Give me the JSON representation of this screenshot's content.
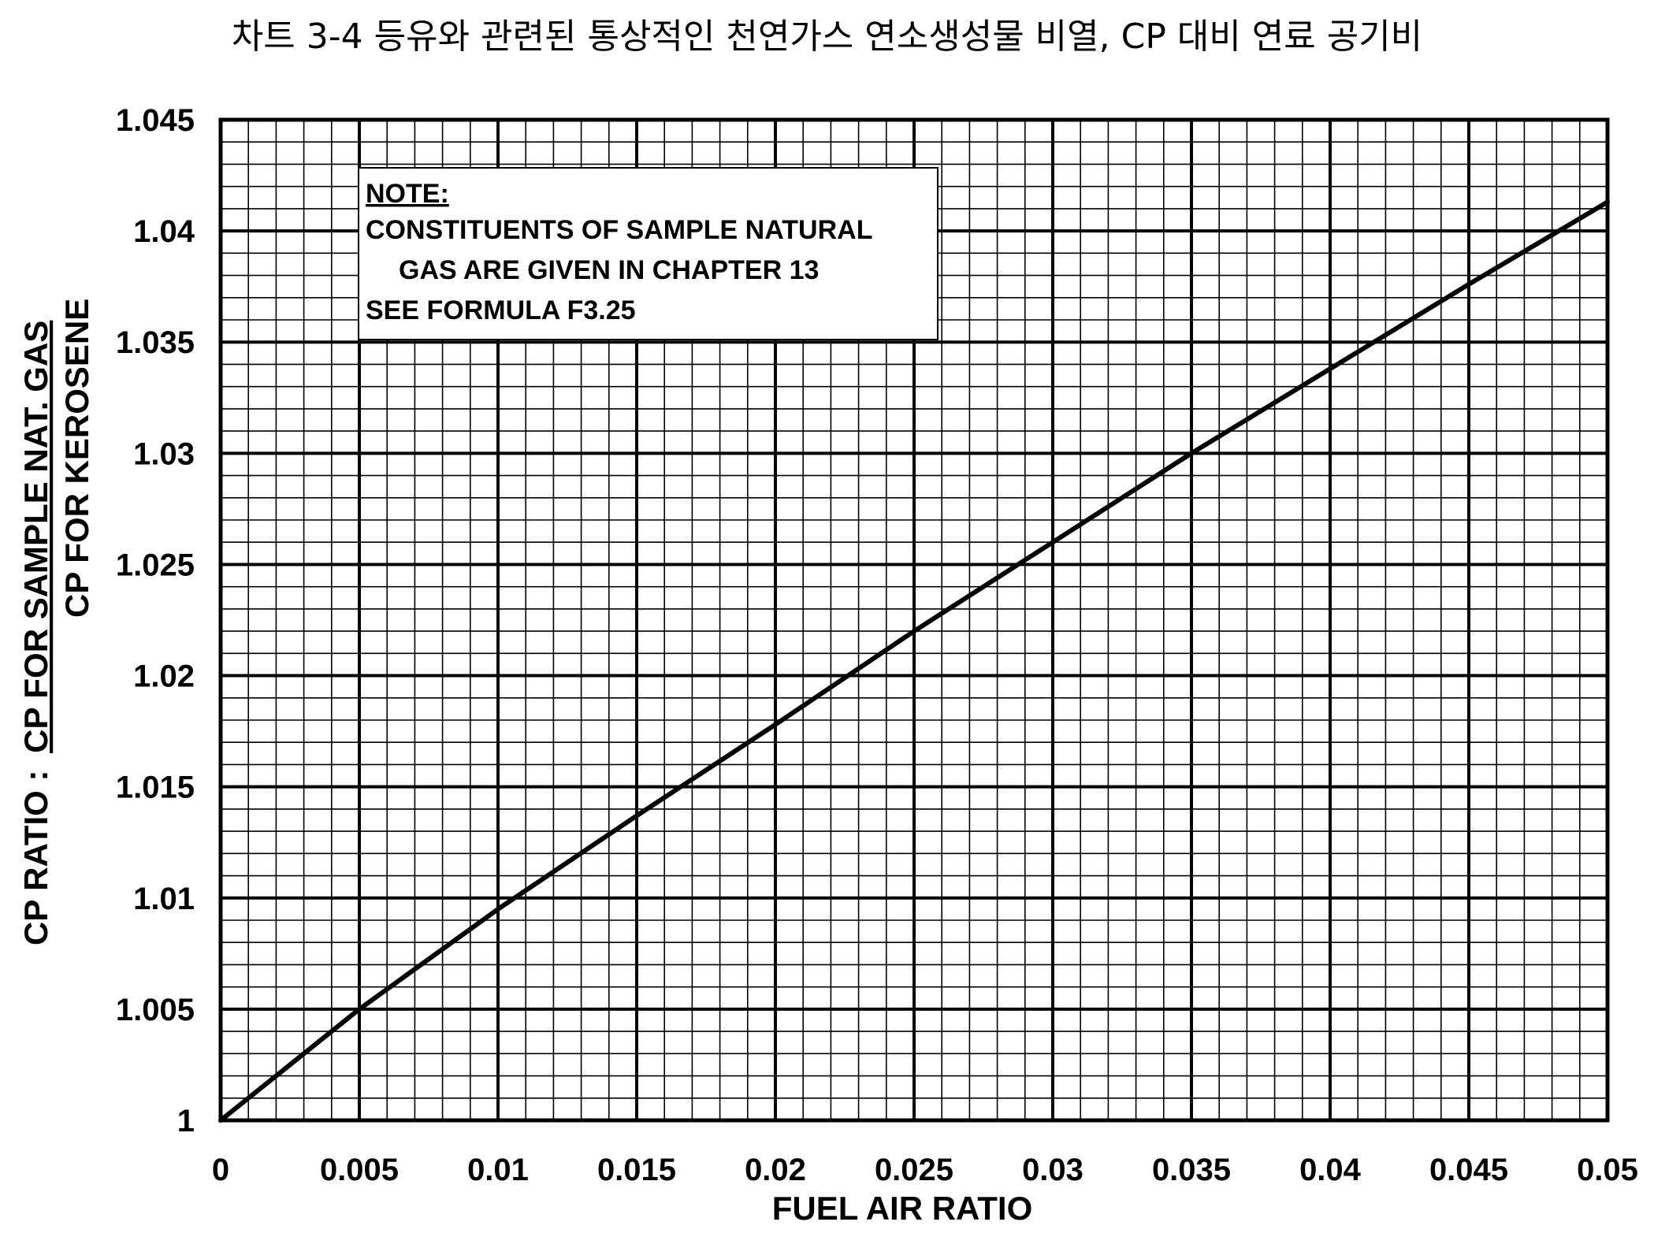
{
  "chart_data": {
    "type": "line",
    "title": "차트 3-4 등유와 관련된 통상적인 천연가스 연소생성물 비열, CP 대비 연료 공기비",
    "xlabel": "FUEL AIR RATIO",
    "ylabel": {
      "prefix": "CP RATIO :",
      "numerator": "CP  FOR SAMPLE NAT. GAS",
      "denominator": "CP FOR KEROSENE"
    },
    "xlim": [
      0,
      0.05
    ],
    "ylim": [
      1,
      1.045
    ],
    "x_ticks": [
      "0",
      "0.005",
      "0.01",
      "0.015",
      "0.02",
      "0.025",
      "0.03",
      "0.035",
      "0.04",
      "0.045",
      "0.05"
    ],
    "y_ticks": [
      "1",
      "1.005",
      "1.01",
      "1.015",
      "1.02",
      "1.025",
      "1.03",
      "1.035",
      "1.04",
      "1.045"
    ],
    "grid": true,
    "minor_grid_divisions": 5,
    "series": [
      {
        "x": [
          0,
          0.005,
          0.01,
          0.015,
          0.02,
          0.025,
          0.03,
          0.035,
          0.04,
          0.045,
          0.05
        ],
        "y": [
          1.0,
          1.005,
          1.0095,
          1.0137,
          1.0178,
          1.022,
          1.026,
          1.03,
          1.0338,
          1.0376,
          1.0413
        ],
        "color": "#000000"
      }
    ],
    "annotation": {
      "heading": "NOTE:",
      "lines": [
        "CONSTITUENTS OF SAMPLE NATURAL",
        "GAS ARE GIVEN IN CHAPTER 13",
        "SEE FORMULA F3.25"
      ]
    }
  }
}
